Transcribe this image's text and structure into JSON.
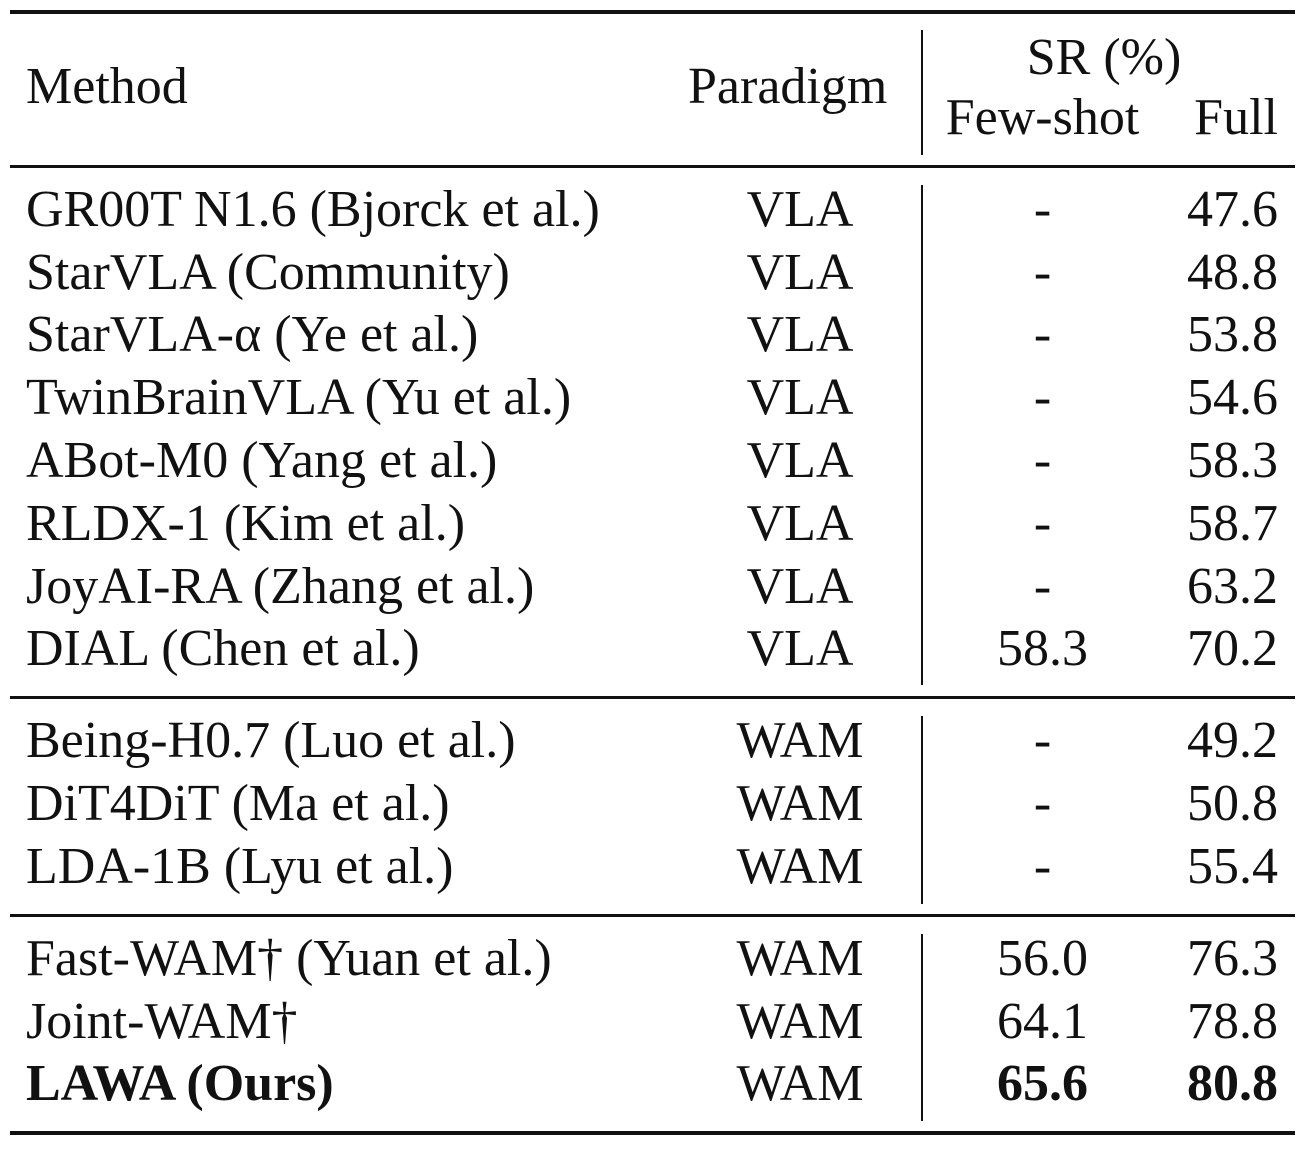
{
  "header": {
    "method": "Method",
    "paradigm": "Paradigm",
    "sr_group": "SR (%)",
    "fewshot": "Few-shot",
    "full": "Full"
  },
  "groups": [
    {
      "rows": [
        {
          "method": "GR00T N1.6 (Bjorck et al.)",
          "paradigm": "VLA",
          "fewshot": "-",
          "full": "47.6"
        },
        {
          "method": "StarVLA (Community)",
          "paradigm": "VLA",
          "fewshot": "-",
          "full": "48.8"
        },
        {
          "method": "StarVLA-α (Ye et al.)",
          "paradigm": "VLA",
          "fewshot": "-",
          "full": "53.8"
        },
        {
          "method": "TwinBrainVLA (Yu et al.)",
          "paradigm": "VLA",
          "fewshot": "-",
          "full": "54.6"
        },
        {
          "method": "ABot-M0 (Yang et al.)",
          "paradigm": "VLA",
          "fewshot": "-",
          "full": "58.3"
        },
        {
          "method": "RLDX-1 (Kim et al.)",
          "paradigm": "VLA",
          "fewshot": "-",
          "full": "58.7"
        },
        {
          "method": "JoyAI-RA (Zhang et al.)",
          "paradigm": "VLA",
          "fewshot": "-",
          "full": "63.2"
        },
        {
          "method": "DIAL (Chen et al.)",
          "paradigm": "VLA",
          "fewshot": "58.3",
          "full": "70.2"
        }
      ]
    },
    {
      "rows": [
        {
          "method": "Being-H0.7 (Luo et al.)",
          "paradigm": "WAM",
          "fewshot": "-",
          "full": "49.2"
        },
        {
          "method": "DiT4DiT (Ma et al.)",
          "paradigm": "WAM",
          "fewshot": "-",
          "full": "50.8"
        },
        {
          "method": "LDA-1B (Lyu et al.)",
          "paradigm": "WAM",
          "fewshot": "-",
          "full": "55.4"
        }
      ]
    },
    {
      "rows": [
        {
          "method": "Fast-WAM† (Yuan et al.)",
          "paradigm": "WAM",
          "fewshot": "56.0",
          "full": "76.3"
        },
        {
          "method": "Joint-WAM†",
          "paradigm": "WAM",
          "fewshot": "64.1",
          "full": "78.8"
        },
        {
          "method": "LAWA (Ours)",
          "paradigm": "WAM",
          "fewshot": "65.6",
          "full": "80.8",
          "bold": true
        }
      ]
    }
  ]
}
